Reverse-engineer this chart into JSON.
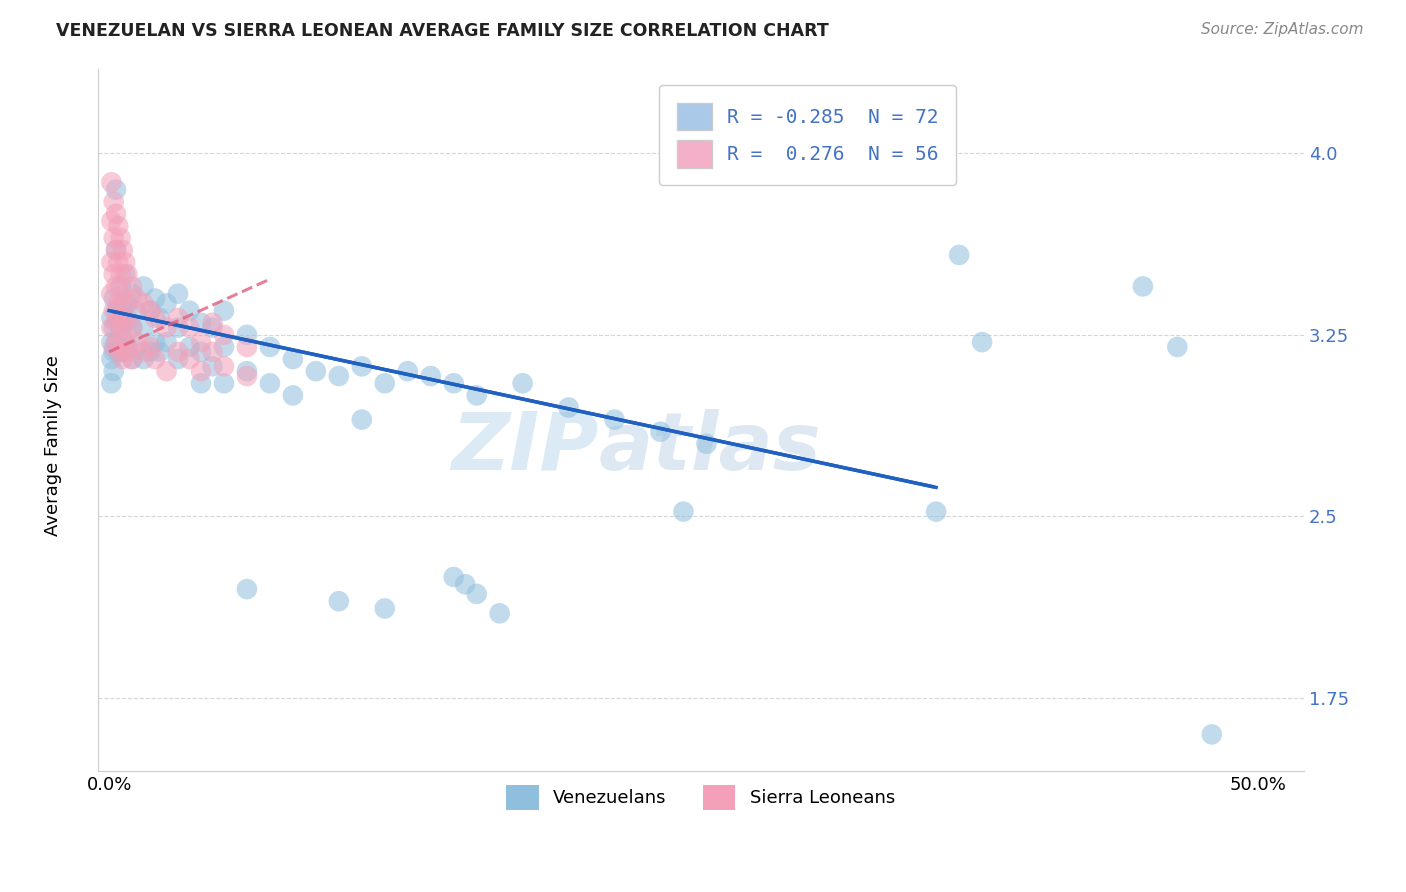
{
  "title": "VENEZUELAN VS SIERRA LEONEAN AVERAGE FAMILY SIZE CORRELATION CHART",
  "source": "Source: ZipAtlas.com",
  "ylabel": "Average Family Size",
  "xlim": [
    -0.005,
    0.52
  ],
  "ylim": [
    1.45,
    4.35
  ],
  "yticks": [
    1.75,
    2.5,
    3.25,
    4.0
  ],
  "xtick_vals": [
    0.0,
    0.05,
    0.1,
    0.15,
    0.2,
    0.25,
    0.3,
    0.35,
    0.4,
    0.45,
    0.5
  ],
  "venezuelan_color": "#90bedd",
  "sierra_color": "#f4a0b8",
  "trend_venezuelan_color": "#2060c0",
  "trend_sierra_color": "#e06080",
  "watermark_zip": "ZIP",
  "watermark_atlas": "atlas",
  "legend1_color": "#aac8e8",
  "legend2_color": "#f4b0c8",
  "venezuelan_points": [
    [
      0.001,
      3.32
    ],
    [
      0.001,
      3.22
    ],
    [
      0.001,
      3.15
    ],
    [
      0.001,
      3.05
    ],
    [
      0.002,
      3.4
    ],
    [
      0.002,
      3.28
    ],
    [
      0.002,
      3.18
    ],
    [
      0.002,
      3.1
    ],
    [
      0.003,
      3.85
    ],
    [
      0.003,
      3.6
    ],
    [
      0.003,
      3.35
    ],
    [
      0.003,
      3.22
    ],
    [
      0.004,
      3.3
    ],
    [
      0.004,
      3.18
    ],
    [
      0.005,
      3.45
    ],
    [
      0.005,
      3.28
    ],
    [
      0.005,
      3.18
    ],
    [
      0.006,
      3.35
    ],
    [
      0.006,
      3.22
    ],
    [
      0.007,
      3.5
    ],
    [
      0.007,
      3.3
    ],
    [
      0.007,
      3.18
    ],
    [
      0.008,
      3.38
    ],
    [
      0.008,
      3.2
    ],
    [
      0.01,
      3.42
    ],
    [
      0.01,
      3.28
    ],
    [
      0.01,
      3.15
    ],
    [
      0.012,
      3.35
    ],
    [
      0.012,
      3.2
    ],
    [
      0.015,
      3.45
    ],
    [
      0.015,
      3.28
    ],
    [
      0.015,
      3.15
    ],
    [
      0.018,
      3.35
    ],
    [
      0.018,
      3.18
    ],
    [
      0.02,
      3.4
    ],
    [
      0.02,
      3.22
    ],
    [
      0.022,
      3.32
    ],
    [
      0.022,
      3.18
    ],
    [
      0.025,
      3.38
    ],
    [
      0.025,
      3.22
    ],
    [
      0.03,
      3.42
    ],
    [
      0.03,
      3.28
    ],
    [
      0.03,
      3.15
    ],
    [
      0.035,
      3.35
    ],
    [
      0.035,
      3.2
    ],
    [
      0.04,
      3.3
    ],
    [
      0.04,
      3.18
    ],
    [
      0.04,
      3.05
    ],
    [
      0.045,
      3.28
    ],
    [
      0.045,
      3.12
    ],
    [
      0.05,
      3.35
    ],
    [
      0.05,
      3.2
    ],
    [
      0.05,
      3.05
    ],
    [
      0.06,
      3.25
    ],
    [
      0.06,
      3.1
    ],
    [
      0.07,
      3.2
    ],
    [
      0.07,
      3.05
    ],
    [
      0.08,
      3.15
    ],
    [
      0.08,
      3.0
    ],
    [
      0.09,
      3.1
    ],
    [
      0.1,
      3.08
    ],
    [
      0.11,
      3.12
    ],
    [
      0.11,
      2.9
    ],
    [
      0.12,
      3.05
    ],
    [
      0.13,
      3.1
    ],
    [
      0.14,
      3.08
    ],
    [
      0.15,
      3.05
    ],
    [
      0.16,
      3.0
    ],
    [
      0.18,
      3.05
    ],
    [
      0.2,
      2.95
    ],
    [
      0.22,
      2.9
    ],
    [
      0.24,
      2.85
    ],
    [
      0.26,
      2.8
    ],
    [
      0.06,
      2.2
    ],
    [
      0.1,
      2.15
    ],
    [
      0.12,
      2.12
    ],
    [
      0.15,
      2.25
    ],
    [
      0.155,
      2.22
    ],
    [
      0.16,
      2.18
    ],
    [
      0.17,
      2.1
    ],
    [
      0.25,
      2.52
    ],
    [
      0.37,
      3.58
    ],
    [
      0.38,
      3.22
    ],
    [
      0.45,
      3.45
    ],
    [
      0.465,
      3.2
    ],
    [
      0.36,
      2.52
    ],
    [
      0.48,
      1.6
    ]
  ],
  "sierra_points": [
    [
      0.001,
      3.88
    ],
    [
      0.001,
      3.72
    ],
    [
      0.001,
      3.55
    ],
    [
      0.001,
      3.42
    ],
    [
      0.001,
      3.28
    ],
    [
      0.002,
      3.8
    ],
    [
      0.002,
      3.65
    ],
    [
      0.002,
      3.5
    ],
    [
      0.002,
      3.35
    ],
    [
      0.002,
      3.2
    ],
    [
      0.003,
      3.75
    ],
    [
      0.003,
      3.6
    ],
    [
      0.003,
      3.45
    ],
    [
      0.003,
      3.3
    ],
    [
      0.004,
      3.7
    ],
    [
      0.004,
      3.55
    ],
    [
      0.004,
      3.38
    ],
    [
      0.004,
      3.22
    ],
    [
      0.005,
      3.65
    ],
    [
      0.005,
      3.5
    ],
    [
      0.005,
      3.32
    ],
    [
      0.005,
      3.18
    ],
    [
      0.006,
      3.6
    ],
    [
      0.006,
      3.42
    ],
    [
      0.006,
      3.28
    ],
    [
      0.006,
      3.15
    ],
    [
      0.007,
      3.55
    ],
    [
      0.007,
      3.38
    ],
    [
      0.007,
      3.22
    ],
    [
      0.008,
      3.5
    ],
    [
      0.008,
      3.32
    ],
    [
      0.008,
      3.18
    ],
    [
      0.01,
      3.45
    ],
    [
      0.01,
      3.28
    ],
    [
      0.01,
      3.15
    ],
    [
      0.012,
      3.4
    ],
    [
      0.012,
      3.22
    ],
    [
      0.015,
      3.38
    ],
    [
      0.015,
      3.18
    ],
    [
      0.018,
      3.35
    ],
    [
      0.018,
      3.2
    ],
    [
      0.02,
      3.32
    ],
    [
      0.02,
      3.15
    ],
    [
      0.025,
      3.28
    ],
    [
      0.025,
      3.1
    ],
    [
      0.03,
      3.32
    ],
    [
      0.03,
      3.18
    ],
    [
      0.035,
      3.28
    ],
    [
      0.035,
      3.15
    ],
    [
      0.04,
      3.22
    ],
    [
      0.04,
      3.1
    ],
    [
      0.045,
      3.3
    ],
    [
      0.045,
      3.18
    ],
    [
      0.05,
      3.25
    ],
    [
      0.05,
      3.12
    ],
    [
      0.06,
      3.2
    ],
    [
      0.06,
      3.08
    ]
  ],
  "trend_v_x0": 0.0,
  "trend_v_x1": 0.36,
  "trend_v_y0": 3.35,
  "trend_v_y1": 2.62,
  "trend_s_x0": 0.0,
  "trend_s_x1": 0.07,
  "trend_s_y0": 3.18,
  "trend_s_y1": 3.48
}
